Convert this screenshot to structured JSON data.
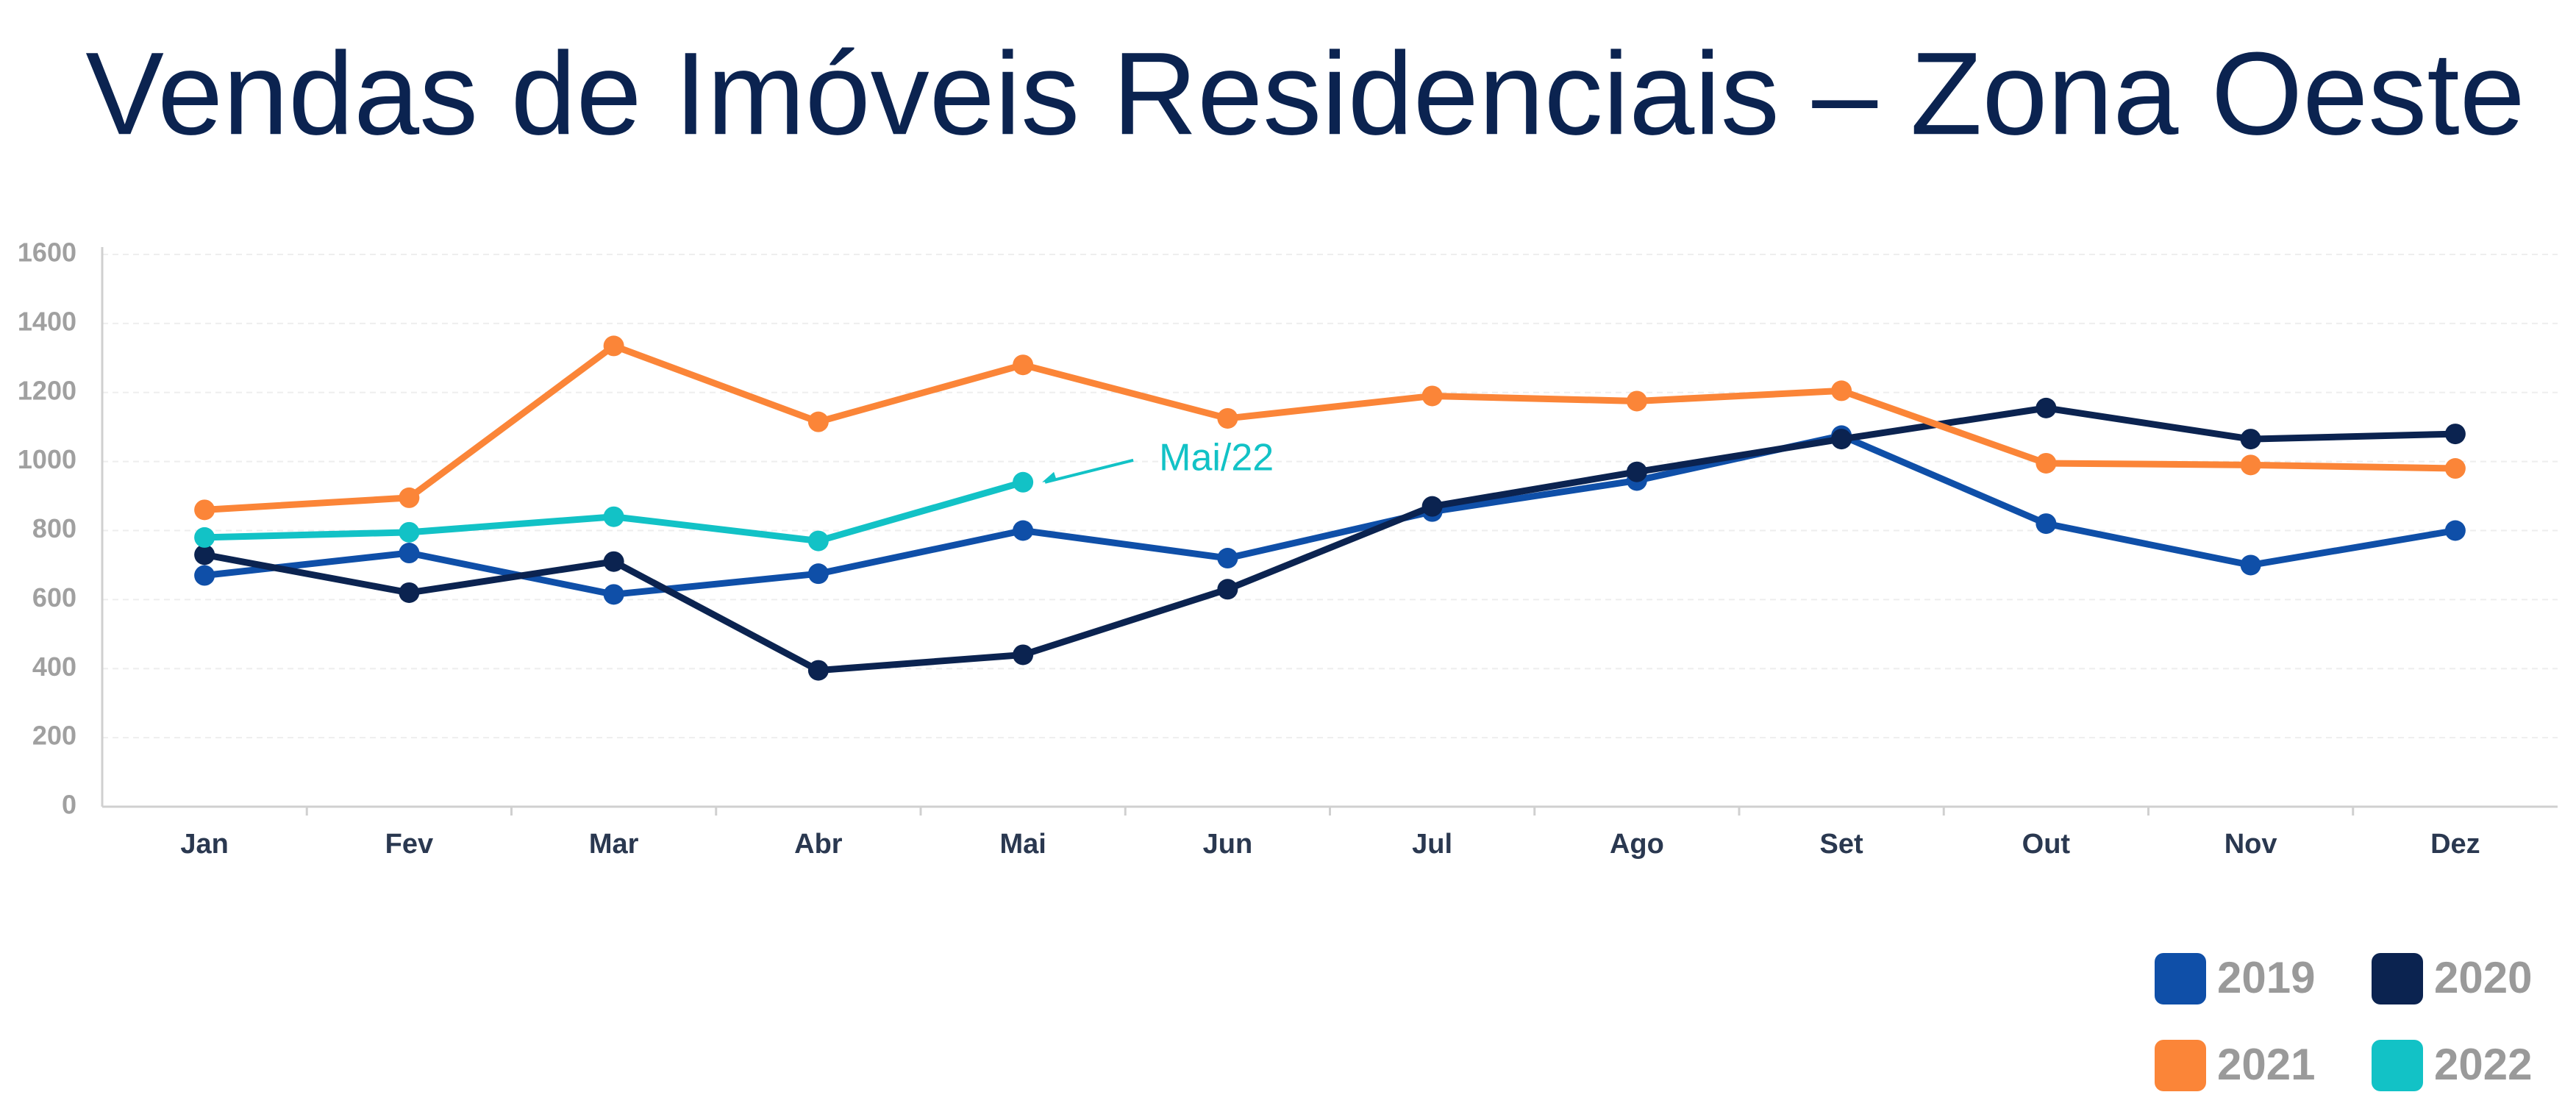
{
  "chart_data": {
    "type": "line",
    "title": "Vendas de Imóveis Residenciais – Zona Oeste",
    "categories": [
      "Jan",
      "Fev",
      "Mar",
      "Abr",
      "Mai",
      "Jun",
      "Jul",
      "Ago",
      "Set",
      "Out",
      "Nov",
      "Dez"
    ],
    "series": [
      {
        "name": "2019",
        "color": "#0f4fa8",
        "values": [
          670,
          735,
          615,
          675,
          800,
          720,
          855,
          945,
          1075,
          820,
          700,
          800
        ]
      },
      {
        "name": "2020",
        "color": "#0b2350",
        "values": [
          730,
          620,
          710,
          395,
          440,
          630,
          870,
          970,
          1065,
          1155,
          1065,
          1080
        ]
      },
      {
        "name": "2021",
        "color": "#fb8538",
        "values": [
          860,
          895,
          1335,
          1115,
          1280,
          1125,
          1190,
          1175,
          1205,
          995,
          990,
          980
        ]
      },
      {
        "name": "2022",
        "color": "#12c2c6",
        "values": [
          780,
          795,
          840,
          770,
          940,
          null,
          null,
          null,
          null,
          null,
          null,
          null
        ]
      }
    ],
    "annotation": "Mai/22",
    "ylim": [
      0,
      1600
    ],
    "yticks": [
      0,
      200,
      400,
      600,
      800,
      1000,
      1200,
      1400,
      1600
    ],
    "grid": true,
    "legend": "bottom-right"
  }
}
